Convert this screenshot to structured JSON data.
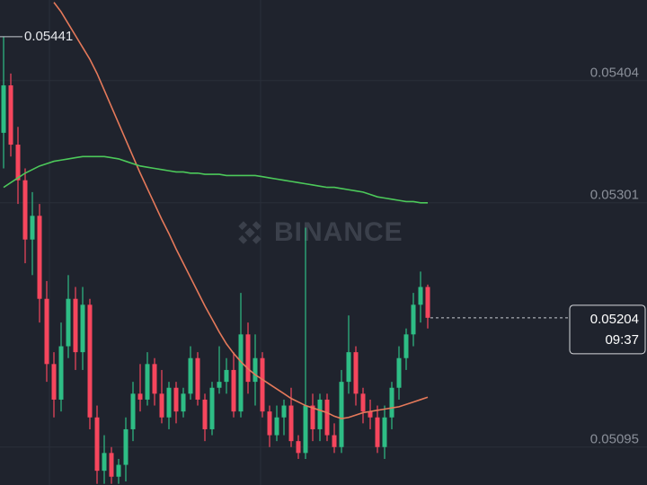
{
  "chart_data": {
    "type": "candlestick",
    "watermark": "BINANCE",
    "ylim": [
      0.05063,
      0.05472
    ],
    "yticks": [
      0.05095,
      0.05301,
      0.05404
    ],
    "up_color": "#2ebd85",
    "down_color": "#f6465d",
    "open": [
      0.0536,
      0.054,
      0.0535,
      0.0532,
      0.0527,
      0.0529,
      0.0522,
      0.05165,
      0.05135,
      0.0518,
      0.0522,
      0.05175,
      0.05215,
      0.0512,
      0.05075,
      0.0509,
      0.0507,
      0.0508,
      0.0511,
      0.0514,
      0.05135,
      0.05165,
      0.0514,
      0.0512,
      0.05145,
      0.05125,
      0.0514,
      0.0517,
      0.05135,
      0.0511,
      0.05145,
      0.0515,
      0.0516,
      0.05125,
      0.0519,
      0.0515,
      0.0517,
      0.05125,
      0.05105,
      0.0512,
      0.0513,
      0.051,
      0.0509,
      0.0513,
      0.0511,
      0.05135,
      0.05105,
      0.05095,
      0.0515,
      0.05175,
      0.0514,
      0.05125,
      0.0512,
      0.05095,
      0.0512,
      0.05145,
      0.0517,
      0.0519,
      0.05215,
      0.0523
    ],
    "high": [
      0.05441,
      0.0541,
      0.05365,
      0.0533,
      0.0531,
      0.053,
      0.05235,
      0.05175,
      0.052,
      0.0524,
      0.0523,
      0.0523,
      0.0522,
      0.0513,
      0.05105,
      0.05095,
      0.05085,
      0.0512,
      0.0515,
      0.05165,
      0.05175,
      0.0517,
      0.0516,
      0.0515,
      0.0515,
      0.05145,
      0.0518,
      0.05175,
      0.0514,
      0.0515,
      0.0518,
      0.0517,
      0.05175,
      0.05225,
      0.052,
      0.0519,
      0.05175,
      0.0513,
      0.0513,
      0.05135,
      0.05145,
      0.05105,
      0.0528,
      0.0514,
      0.0514,
      0.0514,
      0.05115,
      0.0516,
      0.05206,
      0.0518,
      0.05145,
      0.05135,
      0.0513,
      0.0513,
      0.0515,
      0.0518,
      0.05195,
      0.05225,
      0.05243,
      0.05232
    ],
    "low": [
      0.0533,
      0.0534,
      0.053,
      0.0525,
      0.0524,
      0.052,
      0.0515,
      0.0512,
      0.05125,
      0.0517,
      0.0516,
      0.0516,
      0.0511,
      0.05064,
      0.05064,
      0.05064,
      0.05064,
      0.05066,
      0.051,
      0.05125,
      0.0513,
      0.0513,
      0.05115,
      0.0511,
      0.05115,
      0.0512,
      0.05135,
      0.0513,
      0.051,
      0.05105,
      0.0514,
      0.0514,
      0.0512,
      0.0512,
      0.0514,
      0.0513,
      0.0512,
      0.05095,
      0.051,
      0.05105,
      0.05095,
      0.05085,
      0.05085,
      0.051,
      0.051,
      0.051,
      0.0509,
      0.0509,
      0.0514,
      0.0513,
      0.05115,
      0.0511,
      0.0509,
      0.05085,
      0.0511,
      0.05135,
      0.0516,
      0.0518,
      0.052,
      0.05195
    ],
    "close": [
      0.054,
      0.0535,
      0.0532,
      0.0527,
      0.0529,
      0.0522,
      0.05165,
      0.05135,
      0.0518,
      0.0522,
      0.05175,
      0.05215,
      0.0512,
      0.05075,
      0.0509,
      0.0507,
      0.0508,
      0.0511,
      0.0514,
      0.05135,
      0.05165,
      0.0514,
      0.0512,
      0.05145,
      0.05125,
      0.0514,
      0.0517,
      0.05135,
      0.0511,
      0.05145,
      0.0515,
      0.0516,
      0.05125,
      0.0519,
      0.0515,
      0.0517,
      0.05125,
      0.05105,
      0.0512,
      0.0513,
      0.051,
      0.0509,
      0.0513,
      0.0511,
      0.05135,
      0.05105,
      0.05095,
      0.0515,
      0.05175,
      0.0514,
      0.05125,
      0.0512,
      0.05095,
      0.0512,
      0.05145,
      0.0517,
      0.0519,
      0.05215,
      0.0523,
      0.05204
    ],
    "lines": [
      {
        "color": "#e5795a",
        "values": [
          null,
          null,
          null,
          null,
          null,
          null,
          null,
          0.0547,
          0.05462,
          0.05452,
          0.05442,
          0.05432,
          0.05422,
          0.0541,
          0.05396,
          0.05382,
          0.05368,
          0.05354,
          0.0534,
          0.05326,
          0.05313,
          0.053,
          0.05287,
          0.05275,
          0.05262,
          0.0525,
          0.05238,
          0.05226,
          0.05214,
          0.05203,
          0.05192,
          0.05182,
          0.05174,
          0.05167,
          0.05161,
          0.05156,
          0.05152,
          0.05148,
          0.05144,
          0.0514,
          0.05136,
          0.05133,
          0.0513,
          0.05128,
          0.05126,
          0.05124,
          0.05121,
          0.05119,
          0.0512,
          0.05122,
          0.05124,
          0.05125,
          0.05126,
          0.05127,
          0.05128,
          0.05129,
          0.05131,
          0.05133,
          0.05135,
          0.05137
        ]
      },
      {
        "color": "#4cc95a",
        "values": [
          0.05314,
          0.05318,
          0.05322,
          0.05326,
          0.05329,
          0.05332,
          0.05334,
          0.05336,
          0.05337,
          0.05338,
          0.05339,
          0.0534,
          0.0534,
          0.0534,
          0.0534,
          0.05339,
          0.05338,
          0.05336,
          0.05334,
          0.05332,
          0.05331,
          0.0533,
          0.05329,
          0.05328,
          0.05327,
          0.05327,
          0.05326,
          0.05326,
          0.05325,
          0.05325,
          0.05325,
          0.05324,
          0.05324,
          0.05324,
          0.05324,
          0.05324,
          0.05323,
          0.05322,
          0.05321,
          0.0532,
          0.05319,
          0.05318,
          0.05317,
          0.05316,
          0.05315,
          0.05314,
          0.05314,
          0.05313,
          0.05312,
          0.05311,
          0.0531,
          0.05308,
          0.05306,
          0.05305,
          0.05304,
          0.05303,
          0.05302,
          0.05302,
          0.05301,
          0.05301
        ]
      }
    ],
    "max_label": 0.05441,
    "last_price": 0.05204,
    "countdown": "09:37"
  }
}
